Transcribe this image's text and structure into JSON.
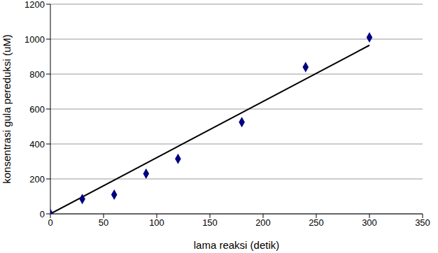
{
  "chart_data": {
    "type": "scatter",
    "x_label": "lama reaksi (detik)",
    "y_label": "konsentrasi gula pereduksi (uM)",
    "xlim": [
      0,
      350
    ],
    "xticks": [
      0,
      50,
      100,
      150,
      200,
      250,
      300,
      350
    ],
    "ylim": [
      0,
      1200
    ],
    "yticks": [
      0,
      200,
      400,
      600,
      800,
      1000,
      1200
    ],
    "grid": true,
    "series": [
      {
        "type": "scatter",
        "color": "#000080",
        "marker": "diamond",
        "x": [
          0,
          30,
          60,
          90,
          120,
          180,
          240,
          300
        ],
        "values": [
          0,
          85,
          110,
          230,
          315,
          525,
          840,
          1010
        ]
      },
      {
        "type": "line",
        "color": "#000000",
        "line_style": "solid",
        "x": [
          0,
          300
        ],
        "values": [
          0,
          965
        ]
      }
    ]
  }
}
